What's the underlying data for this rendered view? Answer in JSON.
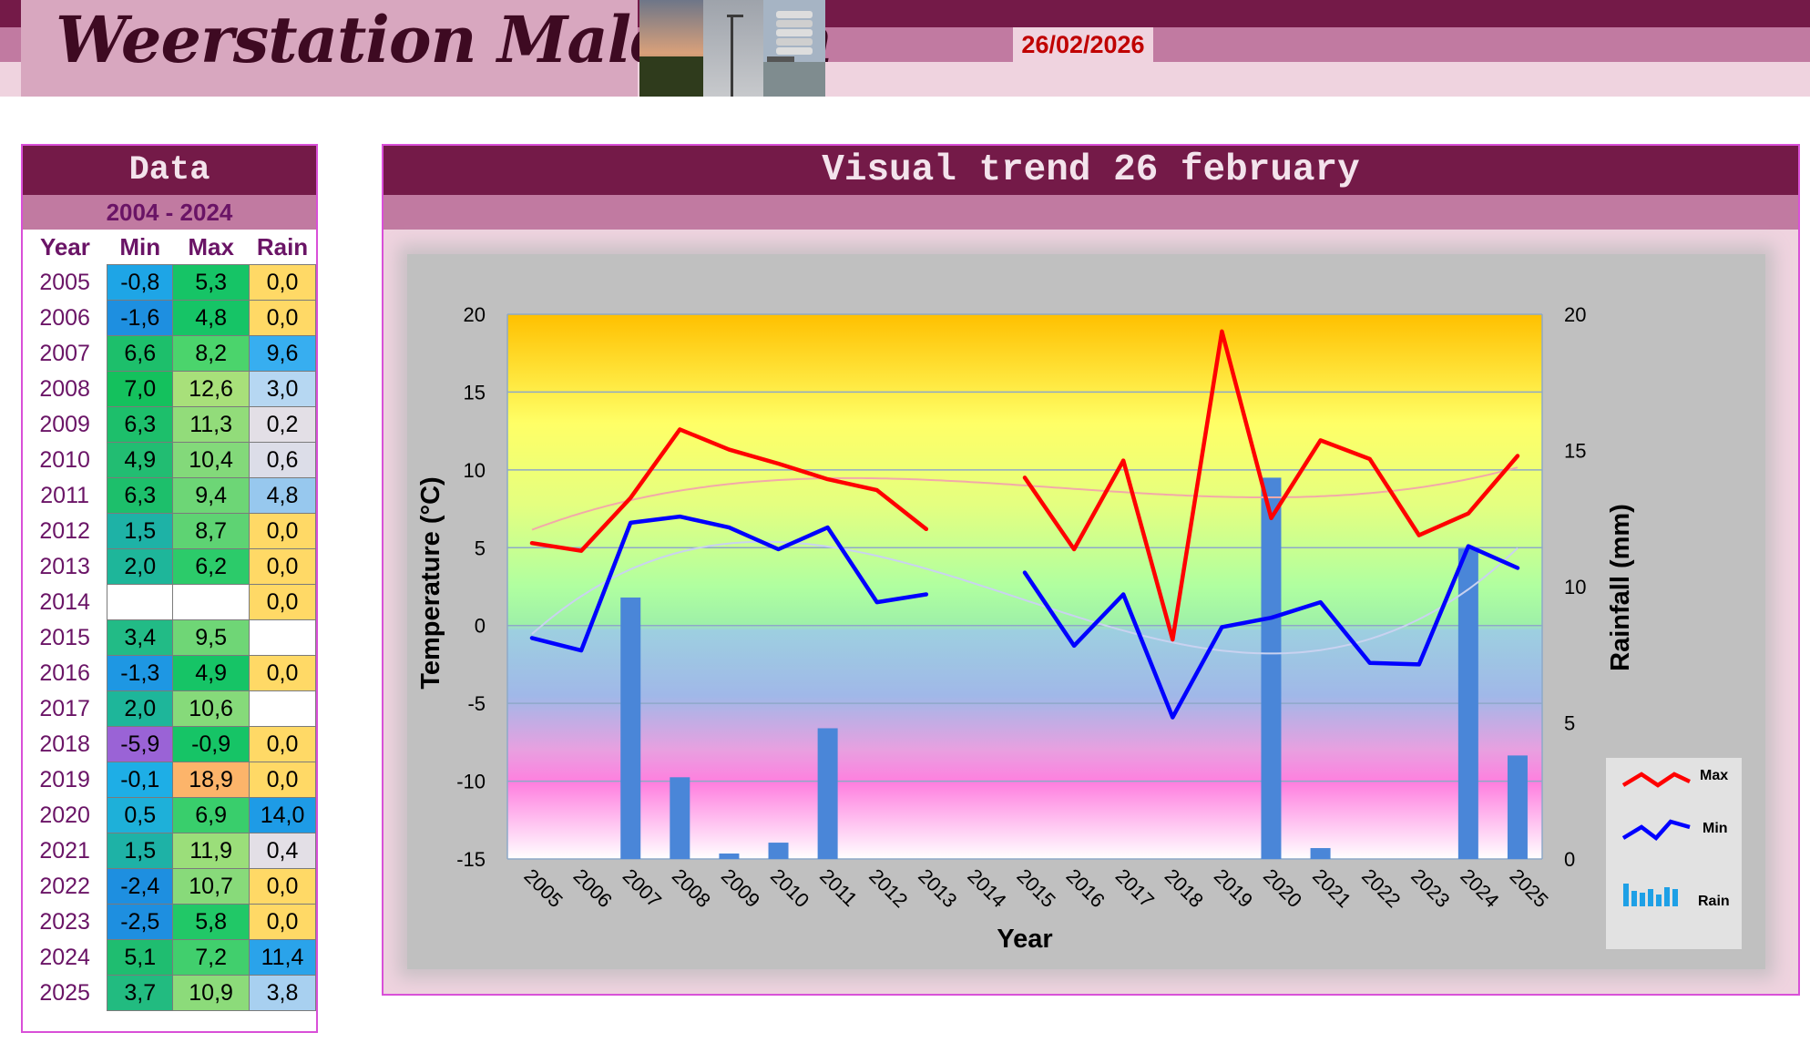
{
  "header": {
    "site_title": "Weerstation Malderen",
    "date": "26/02/2026"
  },
  "data_panel": {
    "title": "Data",
    "range": "2004 - 2024",
    "columns": [
      "Year",
      "Min",
      "Max",
      "Rain"
    ],
    "rows": [
      {
        "year": "2005",
        "min": "-0,8",
        "max": "5,3",
        "rain": "0,0",
        "min_color": "#1ea5e6",
        "max_color": "#16c466",
        "rain_color": "#ffd966"
      },
      {
        "year": "2006",
        "min": "-1,6",
        "max": "4,8",
        "rain": "0,0",
        "min_color": "#1e8fe0",
        "max_color": "#16c466",
        "rain_color": "#ffd966"
      },
      {
        "year": "2007",
        "min": "6,6",
        "max": "8,2",
        "rain": "9,6",
        "min_color": "#1dbf6b",
        "max_color": "#4bd46c",
        "rain_color": "#37aef0"
      },
      {
        "year": "2008",
        "min": "7,0",
        "max": "12,6",
        "rain": "3,0",
        "min_color": "#14c15d",
        "max_color": "#a8e07a",
        "rain_color": "#b6d7f2"
      },
      {
        "year": "2009",
        "min": "6,3",
        "max": "11,3",
        "rain": "0,2",
        "min_color": "#1dbf6b",
        "max_color": "#92dc7a",
        "rain_color": "#e3dfe6"
      },
      {
        "year": "2010",
        "min": "4,9",
        "max": "10,4",
        "rain": "0,6",
        "min_color": "#22bd72",
        "max_color": "#83d97a",
        "rain_color": "#dcdde8"
      },
      {
        "year": "2011",
        "min": "6,3",
        "max": "9,4",
        "rain": "4,8",
        "min_color": "#1dbf6b",
        "max_color": "#6dd676",
        "rain_color": "#97c8ee"
      },
      {
        "year": "2012",
        "min": "1,5",
        "max": "8,7",
        "rain": "0,0",
        "min_color": "#1eb2a6",
        "max_color": "#5ed373",
        "rain_color": "#ffd966"
      },
      {
        "year": "2013",
        "min": "2,0",
        "max": "6,2",
        "rain": "0,0",
        "min_color": "#1eb69a",
        "max_color": "#2ccb6a",
        "rain_color": "#ffd966"
      },
      {
        "year": "2014",
        "min": "",
        "max": "",
        "rain": "0,0",
        "min_color": "#ffffff",
        "max_color": "#ffffff",
        "rain_color": "#ffd966"
      },
      {
        "year": "2015",
        "min": "3,4",
        "max": "9,5",
        "rain": "",
        "min_color": "#22bb86",
        "max_color": "#6fd676",
        "rain_color": "#ffffff"
      },
      {
        "year": "2016",
        "min": "-1,3",
        "max": "4,9",
        "rain": "0,0",
        "min_color": "#1e97e3",
        "max_color": "#16c466",
        "rain_color": "#ffd966"
      },
      {
        "year": "2017",
        "min": "2,0",
        "max": "10,6",
        "rain": "",
        "min_color": "#1eb69a",
        "max_color": "#86da7a",
        "rain_color": "#ffffff"
      },
      {
        "year": "2018",
        "min": "-5,9",
        "max": "-0,9",
        "rain": "0,0",
        "min_color": "#9a63d6",
        "max_color": "#16c466",
        "rain_color": "#ffd966"
      },
      {
        "year": "2019",
        "min": "-0,1",
        "max": "18,9",
        "rain": "0,0",
        "min_color": "#1eaee6",
        "max_color": "#fcb46a",
        "rain_color": "#ffd966"
      },
      {
        "year": "2020",
        "min": "0,5",
        "max": "6,9",
        "rain": "14,0",
        "min_color": "#1eb0d9",
        "max_color": "#39ce6c",
        "rain_color": "#1e9be6"
      },
      {
        "year": "2021",
        "min": "1,5",
        "max": "11,9",
        "rain": "0,4",
        "min_color": "#1eb2a6",
        "max_color": "#9bde7a",
        "rain_color": "#e3dfe6"
      },
      {
        "year": "2022",
        "min": "-2,4",
        "max": "10,7",
        "rain": "0,0",
        "min_color": "#1e8fe0",
        "max_color": "#88da7a",
        "rain_color": "#ffd966"
      },
      {
        "year": "2023",
        "min": "-2,5",
        "max": "5,8",
        "rain": "0,0",
        "min_color": "#1e8fe0",
        "max_color": "#21c867",
        "rain_color": "#ffd966"
      },
      {
        "year": "2024",
        "min": "5,1",
        "max": "7,2",
        "rain": "11,4",
        "min_color": "#1fbd70",
        "max_color": "#41cf6d",
        "rain_color": "#2aa3ea"
      },
      {
        "year": "2025",
        "min": "3,7",
        "max": "10,9",
        "rain": "3,8",
        "min_color": "#22bb80",
        "max_color": "#8cdb7a",
        "rain_color": "#a8d0f0"
      }
    ]
  },
  "chart_panel": {
    "title": "Visual trend 26 february"
  },
  "chart_data": {
    "type": "line",
    "xlabel": "Year",
    "ylabel": "Temperature (°C)",
    "y2label": "Rainfall (mm)",
    "ylim": [
      -15,
      20
    ],
    "y2lim": [
      0,
      20
    ],
    "yticks": [
      -15,
      -10,
      -5,
      0,
      5,
      10,
      15,
      20
    ],
    "y2ticks": [
      0,
      5,
      10,
      15,
      20
    ],
    "categories": [
      "2005",
      "2006",
      "2007",
      "2008",
      "2009",
      "2010",
      "2011",
      "2012",
      "2013",
      "2014",
      "2015",
      "2016",
      "2017",
      "2018",
      "2019",
      "2020",
      "2021",
      "2022",
      "2023",
      "2024",
      "2025"
    ],
    "series": [
      {
        "name": "Max",
        "type": "line",
        "axis": "left",
        "color": "#ff0000",
        "values": [
          5.3,
          4.8,
          8.2,
          12.6,
          11.3,
          10.4,
          9.4,
          8.7,
          6.2,
          null,
          9.5,
          4.9,
          10.6,
          -0.9,
          18.9,
          6.9,
          11.9,
          10.7,
          5.8,
          7.2,
          10.9
        ]
      },
      {
        "name": "Min",
        "type": "line",
        "axis": "left",
        "color": "#0000ff",
        "values": [
          -0.8,
          -1.6,
          6.6,
          7.0,
          6.3,
          4.9,
          6.3,
          1.5,
          2.0,
          null,
          3.4,
          -1.3,
          2.0,
          -5.9,
          -0.1,
          0.5,
          1.5,
          -2.4,
          -2.5,
          5.1,
          3.7
        ]
      },
      {
        "name": "Rain",
        "type": "bar",
        "axis": "right",
        "color": "#4a86d8",
        "values": [
          0.0,
          0.0,
          9.6,
          3.0,
          0.2,
          0.6,
          4.8,
          0.0,
          0.0,
          0.0,
          null,
          0.0,
          null,
          0.0,
          0.0,
          14.0,
          0.4,
          0.0,
          0.0,
          11.4,
          3.8
        ]
      }
    ],
    "trendlines": {
      "max_color": "#f2a9a9",
      "min_color": "#c9d2f0"
    },
    "grid": true,
    "legend_position": "right",
    "background": "temperature color gradient"
  }
}
